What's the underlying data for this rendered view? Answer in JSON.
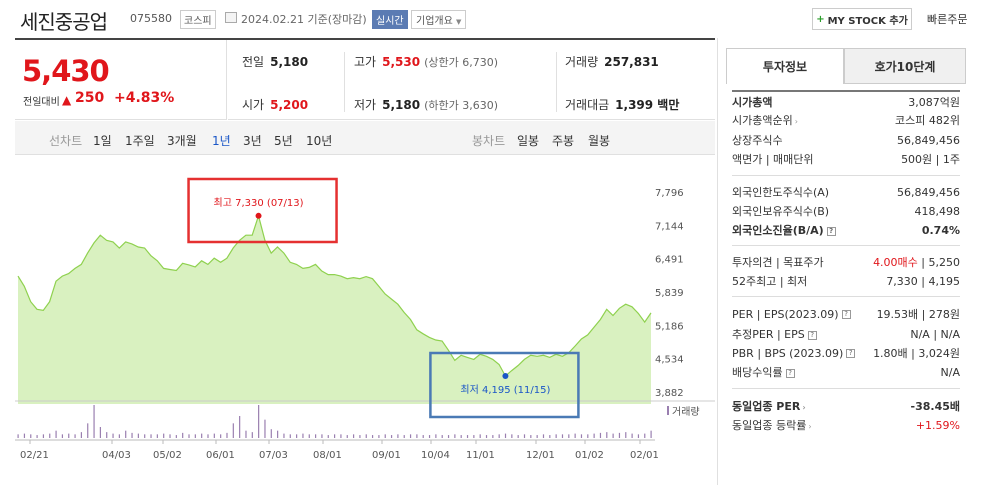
{
  "header": {
    "company_name": "세진중공업",
    "stock_code": "075580",
    "market": "코스피",
    "date_text": "2024.02.21 기준(장마감)",
    "realtime": "실시간",
    "company_info": "기업개요",
    "mystock_button": "MY STOCK 추가",
    "quick_order": "빠른주문"
  },
  "price": {
    "current": "5,430",
    "prev_label": "전일대비",
    "change": "250",
    "change_pct": "+4.83%"
  },
  "stats": {
    "prev_close_label": "전일",
    "prev_close": "5,180",
    "high_label": "고가",
    "high": "5,530",
    "upper_limit": "(상한가 6,730)",
    "volume_label": "거래량",
    "volume": "257,831",
    "open_label": "시가",
    "open": "5,200",
    "low_label": "저가",
    "low": "5,180",
    "lower_limit": "(하한가 3,630)",
    "amount_label": "거래대금",
    "amount": "1,399 백만"
  },
  "period_bar": {
    "line_label": "선차트",
    "periods": [
      "1일",
      "1주일",
      "3개월",
      "1년",
      "3년",
      "5년",
      "10년"
    ],
    "active_period": "1년",
    "candle_label": "봉차트",
    "candles": [
      "일봉",
      "주봉",
      "월봉"
    ]
  },
  "chart_data": {
    "type": "area",
    "y_ticks": [
      "7,796",
      "7,144",
      "6,491",
      "5,839",
      "5,186",
      "4,534",
      "3,882"
    ],
    "x_labels": [
      "02/21",
      "04/03",
      "05/02",
      "06/01",
      "07/03",
      "08/01",
      "09/01",
      "10/04",
      "11/01",
      "12/01",
      "01/02",
      "02/01"
    ],
    "ylim": [
      3882,
      7796
    ],
    "max_annotation": "최고 7,330 (07/13)",
    "min_annotation": "최저 4,195 (11/15)",
    "volume_label": "거래량",
    "series": [
      {
        "values": [
          6150,
          5950,
          5650,
          5500,
          5480,
          5650,
          6050,
          6150,
          6200,
          6300,
          6380,
          6600,
          6800,
          6950,
          6850,
          6820,
          6700,
          6820,
          6780,
          6720,
          6700,
          6550,
          6450,
          6300,
          6280,
          6260,
          6400,
          6370,
          6330,
          6450,
          6380,
          6500,
          6420,
          6500,
          6700,
          6850,
          6950,
          6950,
          7330,
          6850,
          6600,
          6720,
          6600,
          6420,
          6380,
          6300,
          6320,
          6380,
          6250,
          6180,
          6180,
          6150,
          6100,
          6120,
          6100,
          6140,
          6100,
          5950,
          5800,
          5700,
          5600,
          5440,
          5300,
          5100,
          5020,
          4950,
          4900,
          4880,
          4700,
          4500,
          4600,
          4560,
          4520,
          4620,
          4580,
          4520,
          4420,
          4195,
          4300,
          4400,
          4520,
          4600,
          4580,
          4600,
          4560,
          4620,
          4580,
          4650,
          4780,
          4920,
          5000,
          5150,
          5300,
          5500,
          5380,
          5520,
          5600,
          5550,
          5420,
          5250,
          5430
        ]
      }
    ],
    "volume": [
      0.05,
      0.06,
      0.05,
      0.04,
      0.05,
      0.06,
      0.1,
      0.05,
      0.06,
      0.05,
      0.08,
      0.2,
      0.45,
      0.15,
      0.08,
      0.06,
      0.05,
      0.1,
      0.07,
      0.06,
      0.05,
      0.05,
      0.05,
      0.06,
      0.05,
      0.04,
      0.07,
      0.05,
      0.05,
      0.06,
      0.05,
      0.06,
      0.05,
      0.07,
      0.2,
      0.3,
      0.1,
      0.08,
      0.45,
      0.25,
      0.12,
      0.1,
      0.06,
      0.05,
      0.05,
      0.06,
      0.05,
      0.05,
      0.05,
      0.04,
      0.05,
      0.05,
      0.04,
      0.05,
      0.04,
      0.05,
      0.04,
      0.04,
      0.05,
      0.04,
      0.05,
      0.04,
      0.05,
      0.05,
      0.04,
      0.04,
      0.05,
      0.04,
      0.04,
      0.05,
      0.04,
      0.04,
      0.04,
      0.05,
      0.04,
      0.04,
      0.05,
      0.06,
      0.05,
      0.04,
      0.05,
      0.04,
      0.04,
      0.05,
      0.04,
      0.05,
      0.05,
      0.05,
      0.06,
      0.05,
      0.05,
      0.06,
      0.07,
      0.08,
      0.06,
      0.07,
      0.08,
      0.06,
      0.05,
      0.06,
      0.1
    ]
  },
  "side_panel": {
    "tab_info": "투자정보",
    "tab_orderbook": "호가10단계",
    "market_cap_label": "시가총액",
    "market_cap": "3,087억원",
    "market_cap_rank_label": "시가총액순위",
    "market_cap_rank": "코스피 482위",
    "shares_label": "상장주식수",
    "shares": "56,849,456",
    "par_label": "액면가 | 매매단위",
    "par": "500원 | 1주",
    "foreign_limit_label": "외국인한도주식수(A)",
    "foreign_limit": "56,849,456",
    "foreign_own_label": "외국인보유주식수(B)",
    "foreign_own": "418,498",
    "foreign_ratio_label": "외국인소진율(B/A)",
    "foreign_ratio": "0.74%",
    "opinion_label": "투자의견 | 목표주가",
    "opinion_value": "4.00매수",
    "opinion_target": " | 5,250",
    "week52_label": "52주최고 | 최저",
    "week52": "7,330 | 4,195",
    "per_label": "PER | EPS(2023.09)",
    "per": "19.53배 | 278원",
    "est_per_label": "추정PER | EPS",
    "est_per": "N/A | N/A",
    "pbr_label": "PBR | BPS (2023.09)",
    "pbr": "1.80배 | 3,024원",
    "dividend_label": "배당수익률",
    "dividend": "N/A",
    "sector_per_label": "동일업종 PER",
    "sector_per": "-38.45배",
    "sector_change_label": "동일업종 등락률",
    "sector_change": "+1.59%"
  },
  "colors": {
    "up": "#e0161b",
    "chart_line": "#8fd14f",
    "chart_fill": "#d9f1c0",
    "max_box": "#e53030",
    "min_box": "#4a7ab5"
  }
}
